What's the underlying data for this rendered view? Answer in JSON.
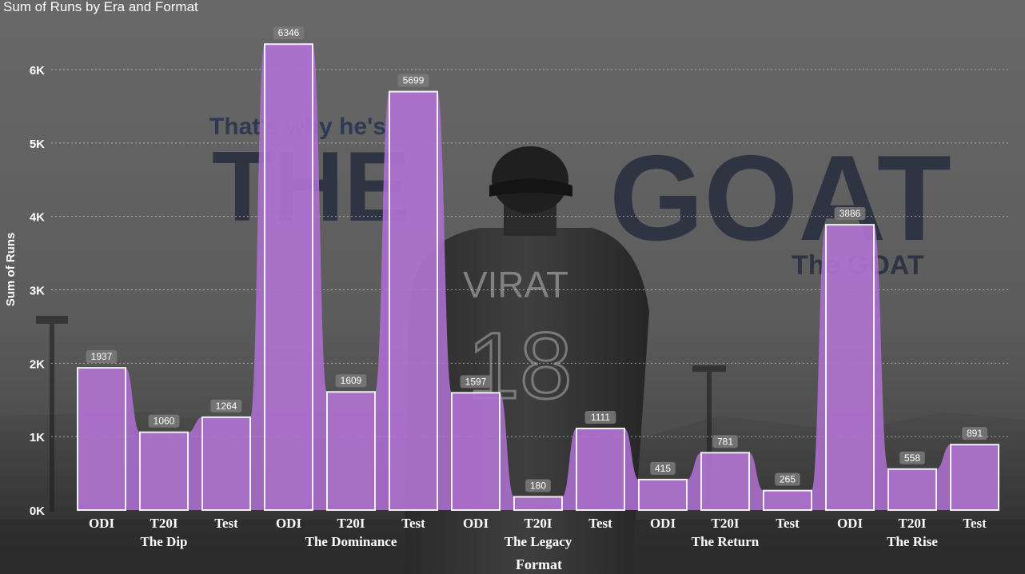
{
  "chart_data": {
    "type": "bar",
    "title": "Sum of Runs by Era and Format",
    "xlabel": "Format",
    "ylabel": "Sum of Runs",
    "ylim": [
      0,
      6500
    ],
    "yticks": [
      0,
      1000,
      2000,
      3000,
      4000,
      5000,
      6000
    ],
    "ytick_labels": [
      "0K",
      "1K",
      "2K",
      "3K",
      "4K",
      "5K",
      "6K"
    ],
    "grid": true,
    "legend": "none",
    "colors": {
      "bar_fill": "#b678d6",
      "bar_edge": "#f0f0f0",
      "area_fill": "#ad6fd0"
    },
    "groups": [
      {
        "era": "The Dip",
        "bars": [
          {
            "format": "ODI",
            "value": 1937
          },
          {
            "format": "T20I",
            "value": 1060
          },
          {
            "format": "Test",
            "value": 1264
          }
        ]
      },
      {
        "era": "The Dominance",
        "bars": [
          {
            "format": "ODI",
            "value": 6346
          },
          {
            "format": "T20I",
            "value": 1609
          },
          {
            "format": "Test",
            "value": 5699
          }
        ]
      },
      {
        "era": "The Legacy",
        "bars": [
          {
            "format": "ODI",
            "value": 1597
          },
          {
            "format": "T20I",
            "value": 180
          },
          {
            "format": "Test",
            "value": 1111
          }
        ]
      },
      {
        "era": "The Return",
        "bars": [
          {
            "format": "ODI",
            "value": 415
          },
          {
            "format": "T20I",
            "value": 781
          },
          {
            "format": "Test",
            "value": 265
          }
        ]
      },
      {
        "era": "The Rise",
        "bars": [
          {
            "format": "ODI",
            "value": 3886
          },
          {
            "format": "T20I",
            "value": 558
          },
          {
            "format": "Test",
            "value": 891
          }
        ]
      }
    ]
  },
  "background": {
    "tagline": "That's why he's",
    "word_the": "THE",
    "word_goat": "GOAT",
    "subtitle": "The GOAT",
    "jersey_name": "VIRAT",
    "jersey_number": "18",
    "colors": {
      "ink": "#2e3442",
      "tagline": "#2e3a52"
    }
  }
}
